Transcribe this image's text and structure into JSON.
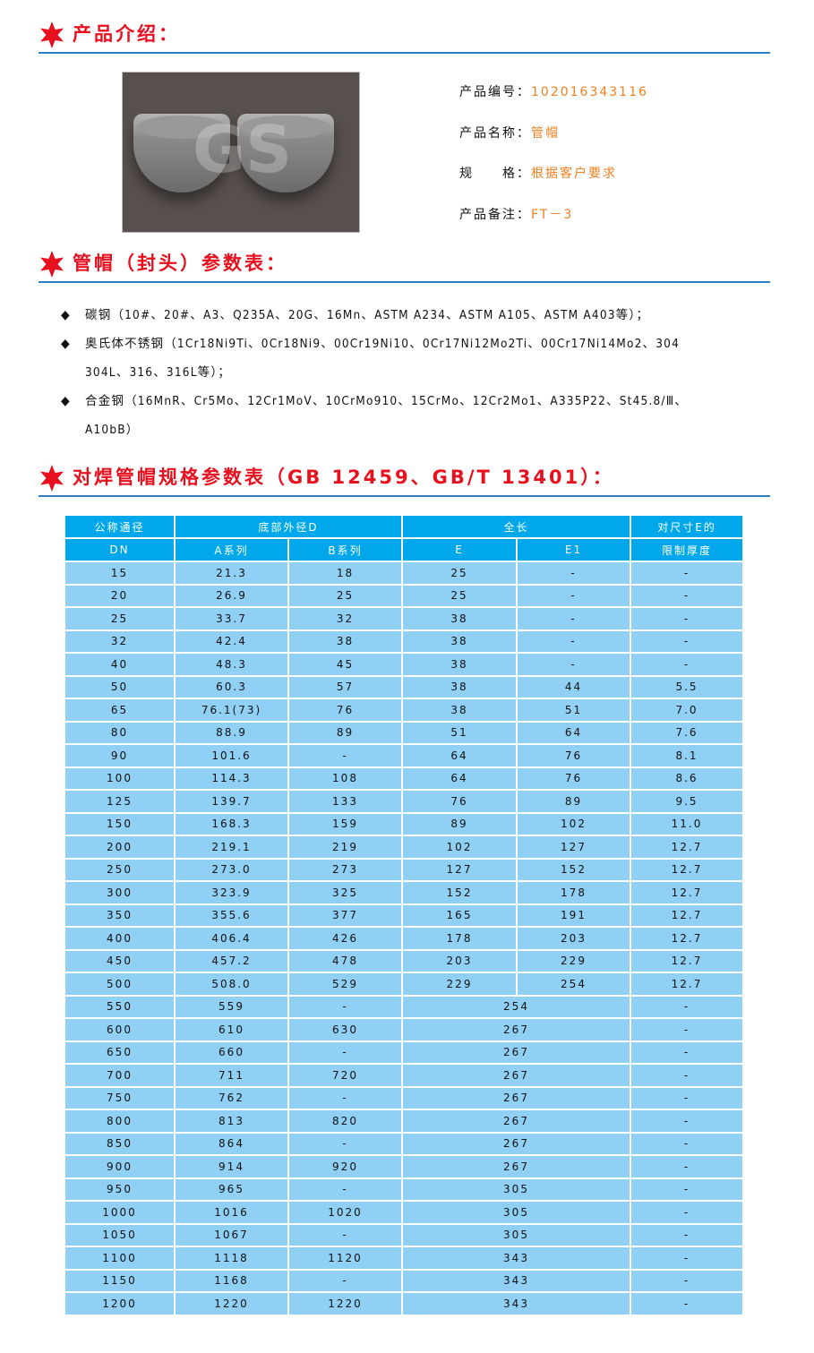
{
  "colors": {
    "accent_red": "#e8101e",
    "rule_blue": "#2a7fc6",
    "value_orange": "#f08020",
    "header_bg": "#00a7ea",
    "row_bg": "#8fd0f4"
  },
  "sections": {
    "intro": "产品介绍：",
    "params": "管帽（封头）参数表：",
    "spec": "对焊管帽规格参数表（GB 12459、GB/T 13401）："
  },
  "photo": {
    "watermark": "GS"
  },
  "info": [
    {
      "label": "产品编号：",
      "value": "102016343116"
    },
    {
      "label": "产品名称：",
      "value": "管帽"
    },
    {
      "label": "规　　格：",
      "value": "根据客户要求"
    },
    {
      "label": "产品备注：",
      "value": "FT－3"
    }
  ],
  "materials": [
    {
      "line1": "碳钢（10#、20#、A3、Q235A、20G、16Mn、ASTM A234、ASTM A105、ASTM A403等）；",
      "line2": ""
    },
    {
      "line1": "奥氏体不锈钢（1Cr18Ni9Ti、0Cr18Ni9、00Cr19Ni10、0Cr17Ni12Mo2Ti、00Cr17Ni14Mo2、304",
      "line2": "304L、316、316L等）；"
    },
    {
      "line1": "合金钢（16MnR、Cr5Mo、12Cr1MoV、10CrMo910、15CrMo、12Cr2Mo1、A335P22、St45.8/Ⅲ、",
      "line2": "A10bB）"
    }
  ],
  "table": {
    "header": {
      "dn_top": "公称通径",
      "dn_bottom": "DN",
      "d_group": "底部外径D",
      "a": "A系列",
      "b": "B系列",
      "len_group": "全长",
      "e": "E",
      "e1": "E1",
      "t_top": "对尺寸E的",
      "t_bottom": "限制厚度"
    },
    "rows": [
      [
        "15",
        "21.3",
        "18",
        "25",
        "-",
        "-"
      ],
      [
        "20",
        "26.9",
        "25",
        "25",
        "-",
        "-"
      ],
      [
        "25",
        "33.7",
        "32",
        "38",
        "-",
        "-"
      ],
      [
        "32",
        "42.4",
        "38",
        "38",
        "-",
        "-"
      ],
      [
        "40",
        "48.3",
        "45",
        "38",
        "-",
        "-"
      ],
      [
        "50",
        "60.3",
        "57",
        "38",
        "44",
        "5.5"
      ],
      [
        "65",
        "76.1(73)",
        "76",
        "38",
        "51",
        "7.0"
      ],
      [
        "80",
        "88.9",
        "89",
        "51",
        "64",
        "7.6"
      ],
      [
        "90",
        "101.6",
        "-",
        "64",
        "76",
        "8.1"
      ],
      [
        "100",
        "114.3",
        "108",
        "64",
        "76",
        "8.6"
      ],
      [
        "125",
        "139.7",
        "133",
        "76",
        "89",
        "9.5"
      ],
      [
        "150",
        "168.3",
        "159",
        "89",
        "102",
        "11.0"
      ],
      [
        "200",
        "219.1",
        "219",
        "102",
        "127",
        "12.7"
      ],
      [
        "250",
        "273.0",
        "273",
        "127",
        "152",
        "12.7"
      ],
      [
        "300",
        "323.9",
        "325",
        "152",
        "178",
        "12.7"
      ],
      [
        "350",
        "355.6",
        "377",
        "165",
        "191",
        "12.7"
      ],
      [
        "400",
        "406.4",
        "426",
        "178",
        "203",
        "12.7"
      ],
      [
        "450",
        "457.2",
        "478",
        "203",
        "229",
        "12.7"
      ],
      [
        "500",
        "508.0",
        "529",
        "229",
        "254",
        "12.7"
      ],
      [
        "550",
        "559",
        "-",
        "254",
        "-"
      ],
      [
        "600",
        "610",
        "630",
        "267",
        "-"
      ],
      [
        "650",
        "660",
        "-",
        "267",
        "-"
      ],
      [
        "700",
        "711",
        "720",
        "267",
        "-"
      ],
      [
        "750",
        "762",
        "-",
        "267",
        "-"
      ],
      [
        "800",
        "813",
        "820",
        "267",
        "-"
      ],
      [
        "850",
        "864",
        "-",
        "267",
        "-"
      ],
      [
        "900",
        "914",
        "920",
        "267",
        "-"
      ],
      [
        "950",
        "965",
        "-",
        "305",
        "-"
      ],
      [
        "1000",
        "1016",
        "1020",
        "305",
        "-"
      ],
      [
        "1050",
        "1067",
        "-",
        "305",
        "-"
      ],
      [
        "1100",
        "1118",
        "1120",
        "343",
        "-"
      ],
      [
        "1150",
        "1168",
        "-",
        "343",
        "-"
      ],
      [
        "1200",
        "1220",
        "1220",
        "343",
        "-"
      ]
    ]
  }
}
